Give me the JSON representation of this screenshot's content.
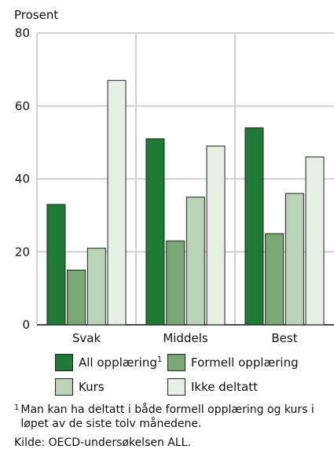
{
  "chart_data": {
    "type": "bar",
    "ylabel": "Prosent",
    "ylim": [
      0,
      80
    ],
    "yticks": [
      0,
      20,
      40,
      60,
      80
    ],
    "grid": true,
    "legend_position": "bottom",
    "categories": [
      "Svak",
      "Middels",
      "Best"
    ],
    "series": [
      {
        "name": "All opplæring",
        "footnote_marker": "1",
        "color": "#1e7a34",
        "values": [
          33,
          51,
          54
        ]
      },
      {
        "name": "Formell opplæring",
        "color": "#7aa874",
        "values": [
          15,
          23,
          25
        ]
      },
      {
        "name": "Kurs",
        "color": "#b8d3b5",
        "values": [
          21,
          35,
          36
        ]
      },
      {
        "name": "Ikke deltatt",
        "color": "#e6efe3",
        "values": [
          67,
          49,
          46
        ]
      }
    ]
  },
  "footnote": {
    "marker": "1",
    "text": "Man kan ha deltatt i både formell opplæring og kurs i løpet av de siste tolv månedene."
  },
  "source": "Kilde: OECD-undersøkelsen ALL."
}
